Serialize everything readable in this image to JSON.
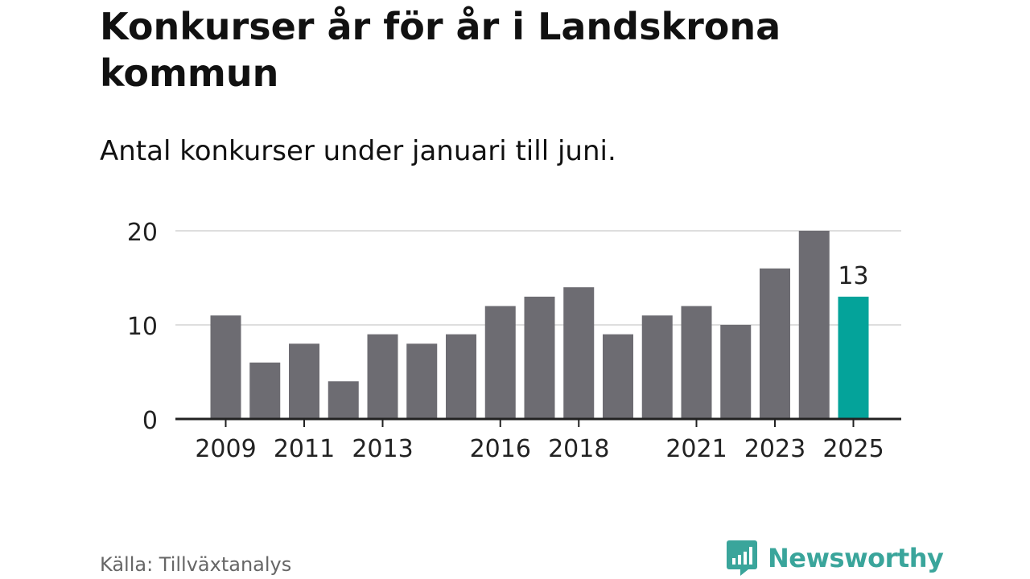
{
  "title": "Konkurser år för år i Landskrona kommun",
  "subtitle": "Antal konkurser under januari till juni.",
  "source": "Källa: Tillväxtanalys",
  "brand": "Newsworthy",
  "colors": {
    "bar": "#6d6c72",
    "highlight": "#04a39a",
    "grid": "#dedede",
    "axis": "#222222",
    "brand": "#3aa59b"
  },
  "chart_data": {
    "type": "bar",
    "title": "Konkurser år för år i Landskrona kommun",
    "subtitle": "Antal konkurser under januari till juni.",
    "categories": [
      "2009",
      "2010",
      "2011",
      "2012",
      "2013",
      "2014",
      "2015",
      "2016",
      "2017",
      "2018",
      "2019",
      "2020",
      "2021",
      "2022",
      "2023",
      "2024",
      "2025"
    ],
    "values": [
      11,
      6,
      8,
      4,
      9,
      8,
      9,
      12,
      13,
      14,
      9,
      11,
      12,
      10,
      16,
      20,
      13
    ],
    "x_tick_labels": [
      "2009",
      "2011",
      "2013",
      "2016",
      "2018",
      "2021",
      "2023",
      "2025"
    ],
    "y_ticks": [
      0,
      10,
      20
    ],
    "ylim": [
      0,
      20
    ],
    "grid": true,
    "highlight_category": "2025",
    "data_labels": [
      {
        "category": "2025",
        "text": "13"
      }
    ]
  }
}
